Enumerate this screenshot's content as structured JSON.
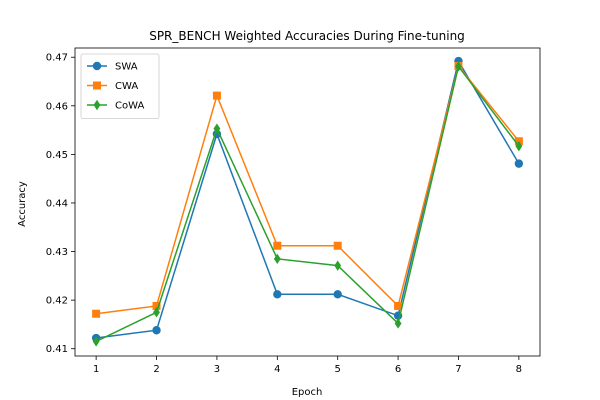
{
  "chart_data": {
    "type": "line",
    "title": "SPR_BENCH Weighted Accuracies During Fine-tuning",
    "xlabel": "Epoch",
    "ylabel": "Accuracy",
    "x": [
      1,
      2,
      3,
      4,
      5,
      6,
      7,
      8
    ],
    "xlim": [
      0.65,
      8.35
    ],
    "ylim": [
      0.4085,
      0.4719
    ],
    "xticks": [
      1,
      2,
      3,
      4,
      5,
      6,
      7,
      8
    ],
    "yticks": [
      0.41,
      0.42,
      0.43,
      0.44,
      0.45,
      0.46,
      0.47
    ],
    "legend_position": "top-left",
    "grid": false,
    "series": [
      {
        "name": "SWA",
        "color": "#1f77b4",
        "marker": "circle",
        "values": [
          0.4122,
          0.4138,
          0.4542,
          0.4212,
          0.4212,
          0.4168,
          0.4692,
          0.4481
        ]
      },
      {
        "name": "CWA",
        "color": "#ff7f0e",
        "marker": "square",
        "values": [
          0.4172,
          0.4188,
          0.4621,
          0.4312,
          0.4312,
          0.4188,
          0.4682,
          0.4527
        ]
      },
      {
        "name": "CoWA",
        "color": "#2ca02c",
        "marker": "diamond",
        "values": [
          0.4115,
          0.4175,
          0.4553,
          0.4285,
          0.4271,
          0.4152,
          0.4681,
          0.4517
        ]
      }
    ]
  }
}
